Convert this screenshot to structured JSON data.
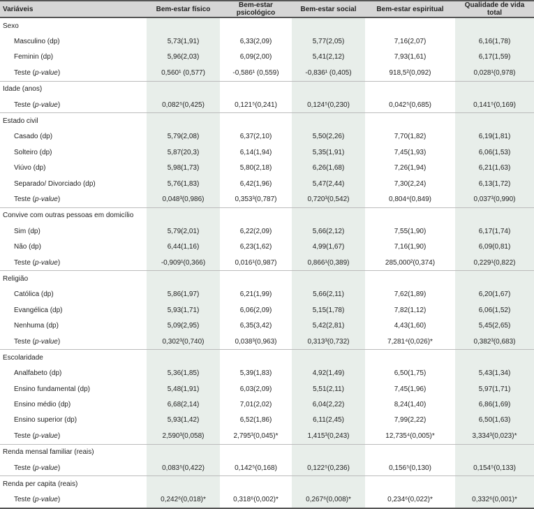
{
  "table": {
    "header": [
      "Variáveis",
      "Bem-estar físico",
      "Bem-estar psicológico",
      "Bem-estar social",
      "Bem-estar espiritual",
      "Qualidade de vida total"
    ],
    "rows": [
      {
        "label": "Sexo"
      },
      {
        "label": "Masculino (dp)",
        "cells": [
          "5,73(1,91)",
          "6,33(2,09)",
          "5,77(2,05)",
          "7,16(2,07)",
          "6,16(1,78)"
        ]
      },
      {
        "label": "Feminin (dp)",
        "cells": [
          "5,96(2,03)",
          "6,09(2,00)",
          "5,41(2,12)",
          "7,93(1,61)",
          "6,17(1,59)"
        ]
      },
      {
        "label": "Teste (p-value)",
        "cells": [
          "0,560¹ (0,577)",
          "-0,586¹ (0,559)",
          "-0,836¹ (0,405)",
          "918,5²(0,092)",
          "0,028¹(0,978)"
        ]
      },
      {
        "label": "Idade (anos)"
      },
      {
        "label": "Teste (p-value)",
        "cells": [
          "0,082⁵(0,425)",
          "0,121⁵(0,241)",
          "0,124⁵(0,230)",
          "0,042⁵(0,685)",
          "0,141⁵(0,169)"
        ]
      },
      {
        "label": "Estado civil"
      },
      {
        "label": "Casado (dp)",
        "cells": [
          "5,79(2,08)",
          "6,37(2,10)",
          "5,50(2,26)",
          "7,70(1,82)",
          "6,19(1,81)"
        ]
      },
      {
        "label": "Solteiro (dp)",
        "cells": [
          "5,87(20,3)",
          "6,14(1,94)",
          "5,35(1,91)",
          "7,45(1,93)",
          "6,06(1,53)"
        ]
      },
      {
        "label": "Viúvo (dp)",
        "cells": [
          "5,98(1,73)",
          "5,80(2,18)",
          "6,26(1,68)",
          "7,26(1,94)",
          "6,21(1,63)"
        ]
      },
      {
        "label": "Separado/ Divorciado (dp)",
        "cells": [
          "5,76(1,83)",
          "6,42(1,96)",
          "5,47(2,44)",
          "7,30(2,24)",
          "6,13(1,72)"
        ]
      },
      {
        "label": "Teste (p-value)",
        "cells": [
          "0,048³(0,986)",
          "0,353³(0,787)",
          "0,720³(0,542)",
          "0,804⁴(0,849)",
          "0,037³(0,990)"
        ]
      },
      {
        "label": "Convive com outras pessoas em domicílio"
      },
      {
        "label": "Sim (dp)",
        "cells": [
          "5,79(2,01)",
          "6,22(2,09)",
          "5,66(2,12)",
          "7,55(1,90)",
          "6,17(1,74)"
        ]
      },
      {
        "label": "Não (dp)",
        "cells": [
          "6,44(1,16)",
          "6,23(1,62)",
          "4,99(1,67)",
          "7,16(1,90)",
          "6,09(0,81)"
        ]
      },
      {
        "label": "Teste (p-value)",
        "cells": [
          "-0,909¹(0,366)",
          "0,016¹(0,987)",
          "0,866¹(0,389)",
          "285,000²(0,374)",
          "0,229¹(0,822)"
        ]
      },
      {
        "label": "Religião"
      },
      {
        "label": "Católica (dp)",
        "cells": [
          "5,86(1,97)",
          "6,21(1,99)",
          "5,66(2,11)",
          "7,62(1,89)",
          "6,20(1,67)"
        ]
      },
      {
        "label": "Evangélica (dp)",
        "cells": [
          "5,93(1,71)",
          "6,06(2,09)",
          "5,15(1,78)",
          "7,82(1,12)",
          "6,06(1,52)"
        ]
      },
      {
        "label": "Nenhuma (dp)",
        "cells": [
          "5,09(2,95)",
          "6,35(3,42)",
          "5,42(2,81)",
          "4,43(1,60)",
          "5,45(2,65)"
        ]
      },
      {
        "label": "Teste (p-value)",
        "cells": [
          "0,302³(0,740)",
          "0,038³(0,963)",
          "0,313³(0,732)",
          "7,281⁴(0,026)*",
          "0,382³(0,683)"
        ]
      },
      {
        "label": "Escolaridade"
      },
      {
        "label": "Analfabeto (dp)",
        "cells": [
          "5,36(1,85)",
          "5,39(1,83)",
          "4,92(1,49)",
          "6,50(1,75)",
          "5,43(1,34)"
        ]
      },
      {
        "label": "Ensino fundamental (dp)",
        "cells": [
          "5,48(1,91)",
          "6,03(2,09)",
          "5,51(2,11)",
          "7,45(1,96)",
          "5,97(1,71)"
        ]
      },
      {
        "label": "Ensino médio (dp)",
        "cells": [
          "6,68(2,14)",
          "7,01(2,02)",
          "6,04(2,22)",
          "8,24(1,40)",
          "6,86(1,69)"
        ]
      },
      {
        "label": "Ensino superior (dp)",
        "cells": [
          "5,93(1,42)",
          "6,52(1,86)",
          "6,11(2,45)",
          "7,99(2,22)",
          "6,50(1,63)"
        ]
      },
      {
        "label": "Teste (p-value)",
        "cells": [
          "2,590³(0,058)",
          "2,795³(0,045)*",
          "1,415³(0,243)",
          "12,735⁴(0,005)*",
          "3,334³(0,023)*"
        ]
      },
      {
        "label": "Renda mensal familiar (reais)"
      },
      {
        "label": "Teste (p-value)",
        "cells": [
          "0,083⁵(0,422)",
          "0,142⁵(0,168)",
          "0,122⁵(0,236)",
          "0,156⁵(0,130)",
          "0,154⁵(0,133)"
        ]
      },
      {
        "label": "Renda per capita (reais)"
      },
      {
        "label": "Teste (p-value)",
        "cells": [
          "0,242⁶(0,018)*",
          "0,318⁶(0,002)*",
          "0,267⁶(0,008)*",
          "0,234⁶(0,022)*",
          "0,332⁶(0,001)*"
        ]
      }
    ]
  }
}
